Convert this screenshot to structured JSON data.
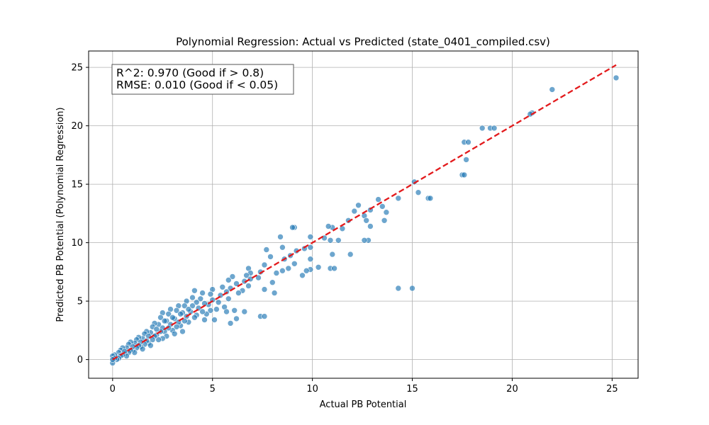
{
  "chart_data": {
    "type": "scatter",
    "title": "Polynomial Regression: Actual vs Predicted (state_0401_compiled.csv)",
    "xlabel": "Actual PB Potential",
    "ylabel": "Predicted PB Potential (Polynomial Regression)",
    "xlim": [
      -1.2,
      26.3
    ],
    "ylim": [
      -1.6,
      26.4
    ],
    "xticks": [
      0,
      5,
      10,
      15,
      20,
      25
    ],
    "yticks": [
      0,
      5,
      10,
      15,
      20,
      25
    ],
    "xtick_labels": [
      "0",
      "5",
      "10",
      "15",
      "20",
      "25"
    ],
    "ytick_labels": [
      "0",
      "5",
      "10",
      "15",
      "20",
      "25"
    ],
    "grid": true,
    "annotation": {
      "lines": [
        "R^2: 0.970 (Good if > 0.8)",
        "RMSE: 0.010 (Good if < 0.05)"
      ],
      "placement": "top-left"
    },
    "reference_line": {
      "from": [
        0.0,
        0.0
      ],
      "to": [
        25.2,
        25.2
      ],
      "style": "dashed",
      "color": "#e31a1c"
    },
    "marker_color": "#1f77b4",
    "points": [
      [
        25.2,
        24.1
      ],
      [
        22.0,
        23.1
      ],
      [
        21.0,
        21.1
      ],
      [
        20.9,
        21.0
      ],
      [
        18.5,
        19.8
      ],
      [
        18.9,
        19.8
      ],
      [
        19.1,
        19.8
      ],
      [
        17.6,
        18.6
      ],
      [
        17.8,
        18.6
      ],
      [
        17.7,
        17.1
      ],
      [
        17.5,
        15.8
      ],
      [
        17.6,
        15.8
      ],
      [
        15.1,
        15.2
      ],
      [
        15.3,
        14.3
      ],
      [
        15.8,
        13.8
      ],
      [
        15.9,
        13.8
      ],
      [
        14.3,
        6.1
      ],
      [
        15.0,
        6.1
      ],
      [
        13.3,
        13.7
      ],
      [
        13.5,
        13.1
      ],
      [
        13.7,
        12.6
      ],
      [
        13.6,
        11.9
      ],
      [
        14.3,
        13.8
      ],
      [
        12.9,
        12.8
      ],
      [
        12.3,
        13.2
      ],
      [
        12.6,
        12.3
      ],
      [
        12.7,
        11.9
      ],
      [
        12.9,
        11.4
      ],
      [
        12.8,
        10.2
      ],
      [
        12.6,
        10.2
      ],
      [
        12.1,
        12.7
      ],
      [
        11.8,
        11.9
      ],
      [
        11.5,
        11.2
      ],
      [
        11.3,
        10.2
      ],
      [
        11.9,
        9.0
      ],
      [
        11.0,
        11.3
      ],
      [
        10.8,
        11.4
      ],
      [
        10.6,
        10.4
      ],
      [
        10.9,
        10.2
      ],
      [
        11.0,
        9.0
      ],
      [
        10.9,
        7.8
      ],
      [
        11.1,
        7.8
      ],
      [
        10.3,
        7.9
      ],
      [
        9.9,
        10.5
      ],
      [
        9.6,
        9.5
      ],
      [
        9.9,
        9.6
      ],
      [
        9.2,
        9.3
      ],
      [
        9.9,
        8.6
      ],
      [
        9.9,
        7.7
      ],
      [
        9.7,
        7.6
      ],
      [
        9.5,
        7.2
      ],
      [
        9.1,
        11.3
      ],
      [
        9.0,
        11.3
      ],
      [
        8.4,
        10.5
      ],
      [
        8.5,
        9.6
      ],
      [
        8.9,
        8.9
      ],
      [
        8.6,
        8.6
      ],
      [
        9.1,
        8.2
      ],
      [
        8.8,
        7.8
      ],
      [
        8.5,
        7.6
      ],
      [
        8.2,
        7.4
      ],
      [
        8.0,
        6.6
      ],
      [
        8.1,
        5.7
      ],
      [
        7.7,
        9.4
      ],
      [
        7.9,
        8.8
      ],
      [
        7.6,
        8.1
      ],
      [
        7.4,
        7.5
      ],
      [
        7.3,
        7.0
      ],
      [
        7.6,
        6.0
      ],
      [
        7.4,
        3.7
      ],
      [
        7.6,
        3.7
      ],
      [
        6.8,
        7.8
      ],
      [
        6.9,
        7.4
      ],
      [
        6.7,
        7.2
      ],
      [
        6.9,
        6.9
      ],
      [
        6.6,
        6.7
      ],
      [
        6.8,
        6.3
      ],
      [
        6.5,
        5.9
      ],
      [
        6.6,
        4.1
      ],
      [
        6.2,
        6.5
      ],
      [
        6.3,
        5.7
      ],
      [
        6.1,
        4.2
      ],
      [
        6.2,
        3.5
      ],
      [
        5.9,
        3.1
      ],
      [
        6.0,
        7.1
      ],
      [
        5.8,
        6.8
      ],
      [
        5.9,
        6.1
      ],
      [
        5.7,
        5.8
      ],
      [
        5.8,
        5.2
      ],
      [
        5.6,
        4.5
      ],
      [
        5.7,
        4.1
      ],
      [
        5.5,
        6.2
      ],
      [
        5.4,
        5.5
      ],
      [
        5.3,
        4.9
      ],
      [
        5.2,
        4.3
      ],
      [
        5.1,
        3.4
      ],
      [
        5.0,
        6.0
      ],
      [
        4.9,
        5.6
      ],
      [
        5.0,
        5.1
      ],
      [
        4.8,
        4.7
      ],
      [
        4.9,
        4.2
      ],
      [
        4.7,
        3.9
      ],
      [
        4.6,
        3.4
      ],
      [
        4.5,
        5.7
      ],
      [
        4.4,
        5.2
      ],
      [
        4.6,
        4.8
      ],
      [
        4.3,
        4.4
      ],
      [
        4.5,
        4.1
      ],
      [
        4.2,
        3.8
      ],
      [
        4.1,
        5.9
      ],
      [
        4.0,
        5.3
      ],
      [
        4.2,
        4.9
      ],
      [
        4.0,
        4.6
      ],
      [
        3.9,
        4.1
      ],
      [
        4.1,
        3.6
      ],
      [
        3.8,
        3.2
      ],
      [
        3.7,
        5.0
      ],
      [
        3.6,
        4.6
      ],
      [
        3.8,
        4.3
      ],
      [
        3.5,
        4.0
      ],
      [
        3.7,
        3.7
      ],
      [
        3.6,
        3.3
      ],
      [
        3.4,
        2.9
      ],
      [
        3.5,
        2.4
      ],
      [
        3.3,
        4.6
      ],
      [
        3.2,
        4.2
      ],
      [
        3.4,
        3.9
      ],
      [
        3.1,
        3.5
      ],
      [
        3.3,
        3.2
      ],
      [
        3.2,
        2.8
      ],
      [
        3.0,
        2.5
      ],
      [
        3.1,
        2.2
      ],
      [
        2.9,
        4.3
      ],
      [
        2.8,
        3.9
      ],
      [
        3.0,
        3.6
      ],
      [
        2.7,
        3.3
      ],
      [
        2.9,
        3.0
      ],
      [
        2.8,
        2.7
      ],
      [
        2.6,
        2.4
      ],
      [
        2.7,
        2.0
      ],
      [
        2.5,
        1.8
      ],
      [
        2.5,
        4.0
      ],
      [
        2.4,
        3.6
      ],
      [
        2.6,
        3.3
      ],
      [
        2.3,
        3.0
      ],
      [
        2.5,
        2.7
      ],
      [
        2.4,
        2.4
      ],
      [
        2.2,
        2.1
      ],
      [
        2.3,
        1.7
      ],
      [
        2.1,
        3.1
      ],
      [
        2.0,
        2.8
      ],
      [
        2.2,
        2.6
      ],
      [
        1.9,
        2.3
      ],
      [
        2.1,
        2.0
      ],
      [
        2.0,
        1.7
      ],
      [
        1.8,
        1.4
      ],
      [
        1.9,
        1.2
      ],
      [
        1.7,
        2.4
      ],
      [
        1.6,
        2.2
      ],
      [
        1.8,
        2.0
      ],
      [
        1.5,
        1.8
      ],
      [
        1.7,
        1.6
      ],
      [
        1.6,
        1.3
      ],
      [
        1.4,
        1.1
      ],
      [
        1.5,
        0.9
      ],
      [
        1.3,
        1.9
      ],
      [
        1.2,
        1.7
      ],
      [
        1.4,
        1.5
      ],
      [
        1.1,
        1.4
      ],
      [
        1.3,
        1.2
      ],
      [
        1.2,
        1.0
      ],
      [
        1.0,
        0.8
      ],
      [
        1.1,
        0.6
      ],
      [
        0.9,
        1.5
      ],
      [
        0.8,
        1.3
      ],
      [
        1.0,
        1.1
      ],
      [
        0.7,
        1.0
      ],
      [
        0.9,
        0.8
      ],
      [
        0.8,
        0.6
      ],
      [
        0.6,
        0.5
      ],
      [
        0.7,
        0.3
      ],
      [
        0.5,
        1.0
      ],
      [
        0.4,
        0.8
      ],
      [
        0.6,
        0.7
      ],
      [
        0.3,
        0.6
      ],
      [
        0.5,
        0.4
      ],
      [
        0.4,
        0.3
      ],
      [
        0.2,
        0.2
      ],
      [
        0.3,
        0.1
      ],
      [
        0.1,
        0.4
      ],
      [
        0.0,
        0.3
      ],
      [
        0.2,
        0.0
      ],
      [
        0.1,
        0.1
      ],
      [
        0.0,
        -0.3
      ],
      [
        0.0,
        0.0
      ]
    ]
  }
}
